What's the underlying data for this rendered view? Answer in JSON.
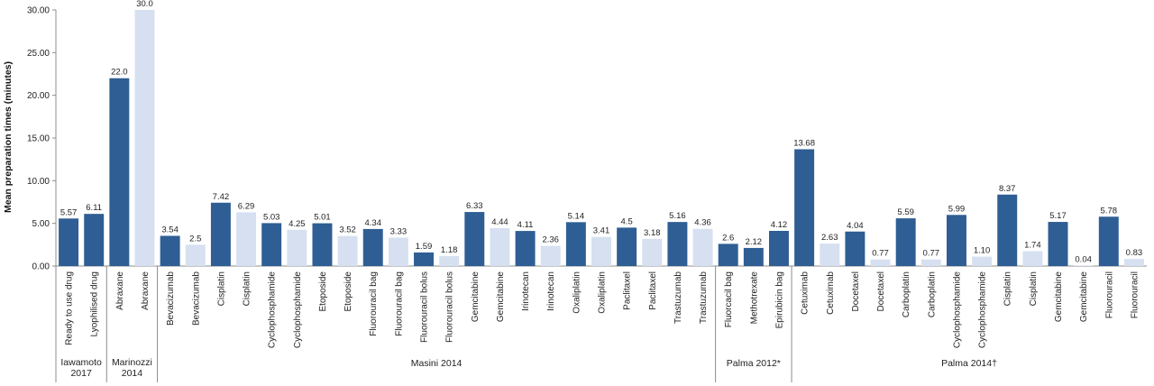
{
  "chart_data": {
    "type": "bar",
    "title": "",
    "xlabel": "",
    "ylabel": "Mean preparation times (minutes)",
    "ylim": [
      0,
      30
    ],
    "yticks": [
      "0.00",
      "5.00",
      "10.00",
      "15.00",
      "20.00",
      "25.00",
      "30.00"
    ],
    "grid": false,
    "colors": {
      "dark": "#2E5E93",
      "light": "#D6E0F1"
    },
    "groups": [
      {
        "label": [
          "Iawamoto",
          "2017"
        ],
        "count": 2
      },
      {
        "label": [
          "Marinozzi",
          "2014"
        ],
        "count": 2
      },
      {
        "label": [
          "Masini 2014"
        ],
        "count": 22
      },
      {
        "label": [
          "Palma 2012*"
        ],
        "count": 3
      },
      {
        "label": [
          "Palma 2014†"
        ],
        "count": 14
      }
    ],
    "bars": [
      {
        "category": "Ready to use drug",
        "value": 5.57,
        "label": "5.57",
        "shade": "dark"
      },
      {
        "category": "Lyophilised drug",
        "value": 6.11,
        "label": "6.11",
        "shade": "dark"
      },
      {
        "category": "Abraxane",
        "value": 22.0,
        "label": "22.0",
        "shade": "dark"
      },
      {
        "category": "Abraxane",
        "value": 30.0,
        "label": "30.0",
        "shade": "light"
      },
      {
        "category": "Bevacizumab",
        "value": 3.54,
        "label": "3.54",
        "shade": "dark"
      },
      {
        "category": "Bevacizumab",
        "value": 2.5,
        "label": "2.5",
        "shade": "light"
      },
      {
        "category": "Cisplatin",
        "value": 7.42,
        "label": "7.42",
        "shade": "dark"
      },
      {
        "category": "Cisplatin",
        "value": 6.29,
        "label": "6.29",
        "shade": "light"
      },
      {
        "category": "Cyclophosphamide",
        "value": 5.03,
        "label": "5.03",
        "shade": "dark"
      },
      {
        "category": "Cyclophosphamide",
        "value": 4.25,
        "label": "4.25",
        "shade": "light"
      },
      {
        "category": "Etoposide",
        "value": 5.01,
        "label": "5.01",
        "shade": "dark"
      },
      {
        "category": "Etoposide",
        "value": 3.52,
        "label": "3.52",
        "shade": "light"
      },
      {
        "category": "Fluorouracil bag",
        "value": 4.34,
        "label": "4.34",
        "shade": "dark"
      },
      {
        "category": "Fluorouracil bag",
        "value": 3.33,
        "label": "3.33",
        "shade": "light"
      },
      {
        "category": "Fluorouracil bolus",
        "value": 1.59,
        "label": "1.59",
        "shade": "dark"
      },
      {
        "category": "Fluorouracil bolus",
        "value": 1.18,
        "label": "1.18",
        "shade": "light"
      },
      {
        "category": "Gemcitabine",
        "value": 6.33,
        "label": "6.33",
        "shade": "dark"
      },
      {
        "category": "Gemcitabine",
        "value": 4.44,
        "label": "4.44",
        "shade": "light"
      },
      {
        "category": "Irinotecan",
        "value": 4.11,
        "label": "4.11",
        "shade": "dark"
      },
      {
        "category": "Irinotecan",
        "value": 2.36,
        "label": "2.36",
        "shade": "light"
      },
      {
        "category": "Oxaliplatin",
        "value": 5.14,
        "label": "5.14",
        "shade": "dark"
      },
      {
        "category": "Oxaliplatin",
        "value": 3.41,
        "label": "3.41",
        "shade": "light"
      },
      {
        "category": "Paclitaxel",
        "value": 4.5,
        "label": "4.5",
        "shade": "dark"
      },
      {
        "category": "Paclitaxel",
        "value": 3.18,
        "label": "3.18",
        "shade": "light"
      },
      {
        "category": "Trastuzumab",
        "value": 5.16,
        "label": "5.16",
        "shade": "dark"
      },
      {
        "category": "Trastuzumab",
        "value": 4.36,
        "label": "4.36",
        "shade": "light"
      },
      {
        "category": "Fluorcacil bag",
        "value": 2.6,
        "label": "2.6",
        "shade": "dark"
      },
      {
        "category": "Methotrexate",
        "value": 2.12,
        "label": "2.12",
        "shade": "dark"
      },
      {
        "category": "Epirubicin bag",
        "value": 4.12,
        "label": "4.12",
        "shade": "dark"
      },
      {
        "category": "Cetuximab",
        "value": 13.68,
        "label": "13.68",
        "shade": "dark"
      },
      {
        "category": "Cetuximab",
        "value": 2.63,
        "label": "2.63",
        "shade": "light"
      },
      {
        "category": "Docetaxel",
        "value": 4.04,
        "label": "4.04",
        "shade": "dark"
      },
      {
        "category": "Docetaxel",
        "value": 0.77,
        "label": "0.77",
        "shade": "light"
      },
      {
        "category": "Carboplatin",
        "value": 5.59,
        "label": "5.59",
        "shade": "dark"
      },
      {
        "category": "Carboplatin",
        "value": 0.77,
        "label": "0.77",
        "shade": "light"
      },
      {
        "category": "Cyclophosphamide",
        "value": 5.99,
        "label": "5.99",
        "shade": "dark"
      },
      {
        "category": "Cyclophosphamide",
        "value": 1.1,
        "label": "1.10",
        "shade": "light"
      },
      {
        "category": "Cisplatin",
        "value": 8.37,
        "label": "8.37",
        "shade": "dark"
      },
      {
        "category": "Cisplatin",
        "value": 1.74,
        "label": "1.74",
        "shade": "light"
      },
      {
        "category": "Gemcitabine",
        "value": 5.17,
        "label": "5.17",
        "shade": "dark"
      },
      {
        "category": "Gemcitabine",
        "value": 0.04,
        "label": "0.04",
        "shade": "light"
      },
      {
        "category": "Fluorouracil",
        "value": 5.78,
        "label": "5.78",
        "shade": "dark"
      },
      {
        "category": "Fluorouracil",
        "value": 0.83,
        "label": "0.83",
        "shade": "light"
      }
    ]
  }
}
